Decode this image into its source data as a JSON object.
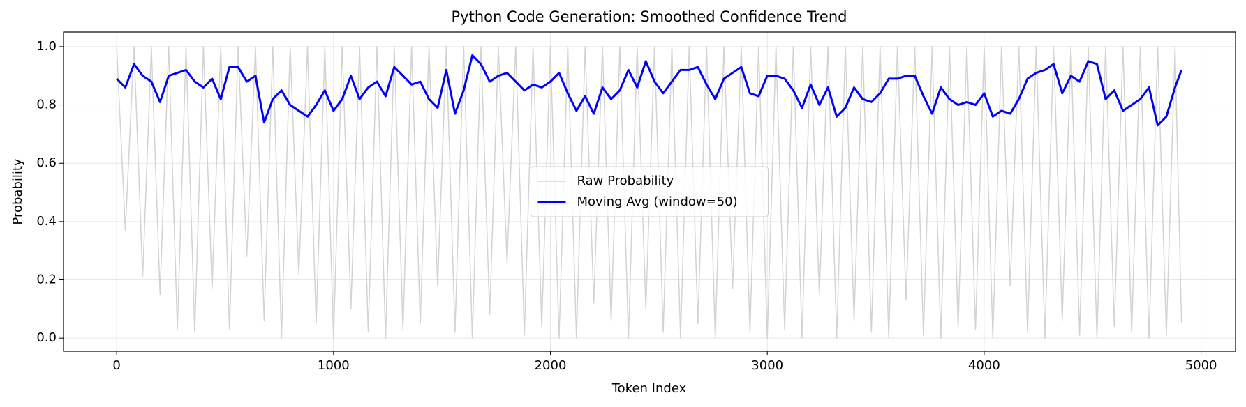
{
  "chart_data": {
    "type": "line",
    "title": "Python Code Generation: Smoothed Confidence Trend",
    "x_label": "Token Index",
    "y_label": "Probability",
    "x": [
      0,
      40,
      80,
      120,
      160,
      200,
      240,
      280,
      320,
      360,
      400,
      440,
      480,
      520,
      560,
      600,
      640,
      680,
      720,
      760,
      800,
      840,
      880,
      920,
      960,
      1000,
      1040,
      1080,
      1120,
      1160,
      1200,
      1240,
      1280,
      1320,
      1360,
      1400,
      1440,
      1480,
      1520,
      1560,
      1600,
      1640,
      1680,
      1720,
      1760,
      1800,
      1840,
      1880,
      1920,
      1960,
      2000,
      2040,
      2080,
      2120,
      2160,
      2200,
      2240,
      2280,
      2320,
      2360,
      2400,
      2440,
      2480,
      2520,
      2560,
      2600,
      2640,
      2680,
      2720,
      2760,
      2800,
      2840,
      2880,
      2920,
      2960,
      3000,
      3040,
      3080,
      3120,
      3160,
      3200,
      3240,
      3280,
      3320,
      3360,
      3400,
      3440,
      3480,
      3520,
      3560,
      3600,
      3640,
      3680,
      3720,
      3760,
      3800,
      3840,
      3880,
      3920,
      3960,
      4000,
      4040,
      4080,
      4120,
      4160,
      4200,
      4240,
      4280,
      4320,
      4360,
      4400,
      4440,
      4480,
      4520,
      4560,
      4600,
      4640,
      4680,
      4720,
      4760,
      4800,
      4840,
      4880,
      4910
    ],
    "series": [
      {
        "name": "Raw Probability",
        "color": "#d3d3d3",
        "width": 1.5,
        "values": [
          1,
          0.37,
          1,
          0.21,
          1,
          0.15,
          1,
          0.03,
          1,
          0.02,
          1,
          0.17,
          1,
          0.03,
          1,
          0.28,
          1,
          0.06,
          1,
          0.0,
          1,
          0.22,
          1,
          0.05,
          1,
          0.0,
          1,
          0.1,
          1,
          0.02,
          1,
          0.0,
          1,
          0.03,
          1,
          0.05,
          1,
          0.18,
          1,
          0.02,
          1,
          0.0,
          1,
          0.08,
          1,
          0.26,
          1,
          0.01,
          1,
          0.04,
          1,
          0.0,
          1,
          0.0,
          1,
          0.12,
          1,
          0.06,
          1,
          0.0,
          1,
          0.1,
          1,
          0.02,
          1,
          0.0,
          1,
          0.05,
          1,
          0.0,
          1,
          0.17,
          1,
          0.02,
          1,
          0.0,
          1,
          0.03,
          1,
          0.0,
          1,
          0.15,
          1,
          0.0,
          1,
          0.06,
          1,
          0.02,
          1,
          0.0,
          1,
          0.13,
          1,
          0.01,
          1,
          0.0,
          1,
          0.04,
          1,
          0.03,
          1,
          0.0,
          1,
          0.18,
          1,
          0.02,
          1,
          0.0,
          1,
          0.06,
          1,
          0.01,
          1,
          0.0,
          1,
          0.04,
          1,
          0.02,
          1,
          0.0,
          1,
          0.01,
          1,
          0.05
        ]
      },
      {
        "name": "Moving Avg (window=50)",
        "color": "#0000ff",
        "width": 3,
        "values": [
          0.89,
          0.86,
          0.94,
          0.9,
          0.88,
          0.81,
          0.9,
          0.91,
          0.92,
          0.88,
          0.86,
          0.89,
          0.82,
          0.93,
          0.93,
          0.88,
          0.9,
          0.74,
          0.82,
          0.85,
          0.8,
          0.78,
          0.76,
          0.8,
          0.85,
          0.78,
          0.82,
          0.9,
          0.82,
          0.86,
          0.88,
          0.83,
          0.93,
          0.9,
          0.87,
          0.88,
          0.82,
          0.79,
          0.92,
          0.77,
          0.85,
          0.97,
          0.94,
          0.88,
          0.9,
          0.91,
          0.88,
          0.85,
          0.87,
          0.86,
          0.88,
          0.91,
          0.84,
          0.78,
          0.83,
          0.77,
          0.86,
          0.82,
          0.85,
          0.92,
          0.86,
          0.95,
          0.88,
          0.84,
          0.88,
          0.92,
          0.92,
          0.93,
          0.87,
          0.82,
          0.89,
          0.91,
          0.93,
          0.84,
          0.83,
          0.9,
          0.9,
          0.89,
          0.85,
          0.79,
          0.87,
          0.8,
          0.86,
          0.76,
          0.79,
          0.86,
          0.82,
          0.81,
          0.84,
          0.89,
          0.89,
          0.9,
          0.9,
          0.83,
          0.77,
          0.86,
          0.82,
          0.8,
          0.81,
          0.8,
          0.84,
          0.76,
          0.78,
          0.77,
          0.82,
          0.89,
          0.91,
          0.92,
          0.94,
          0.84,
          0.9,
          0.88,
          0.95,
          0.94,
          0.82,
          0.85,
          0.78,
          0.8,
          0.82,
          0.86,
          0.73,
          0.76,
          0.86,
          0.92
        ]
      }
    ],
    "xlim": [
      -245,
      5159
    ],
    "ylim": [
      -0.045,
      1.05
    ],
    "xticks": [
      0,
      1000,
      2000,
      3000,
      4000,
      5000
    ],
    "yticks": [
      {
        "value": 0,
        "label": "0.0"
      },
      {
        "value": 0.2,
        "label": "0.2"
      },
      {
        "value": 0.4,
        "label": "0.4"
      },
      {
        "value": 0.6,
        "label": "0.6"
      },
      {
        "value": 0.8,
        "label": "0.8"
      },
      {
        "value": 1,
        "label": "1.0"
      }
    ],
    "grid": true,
    "legend": "center"
  }
}
